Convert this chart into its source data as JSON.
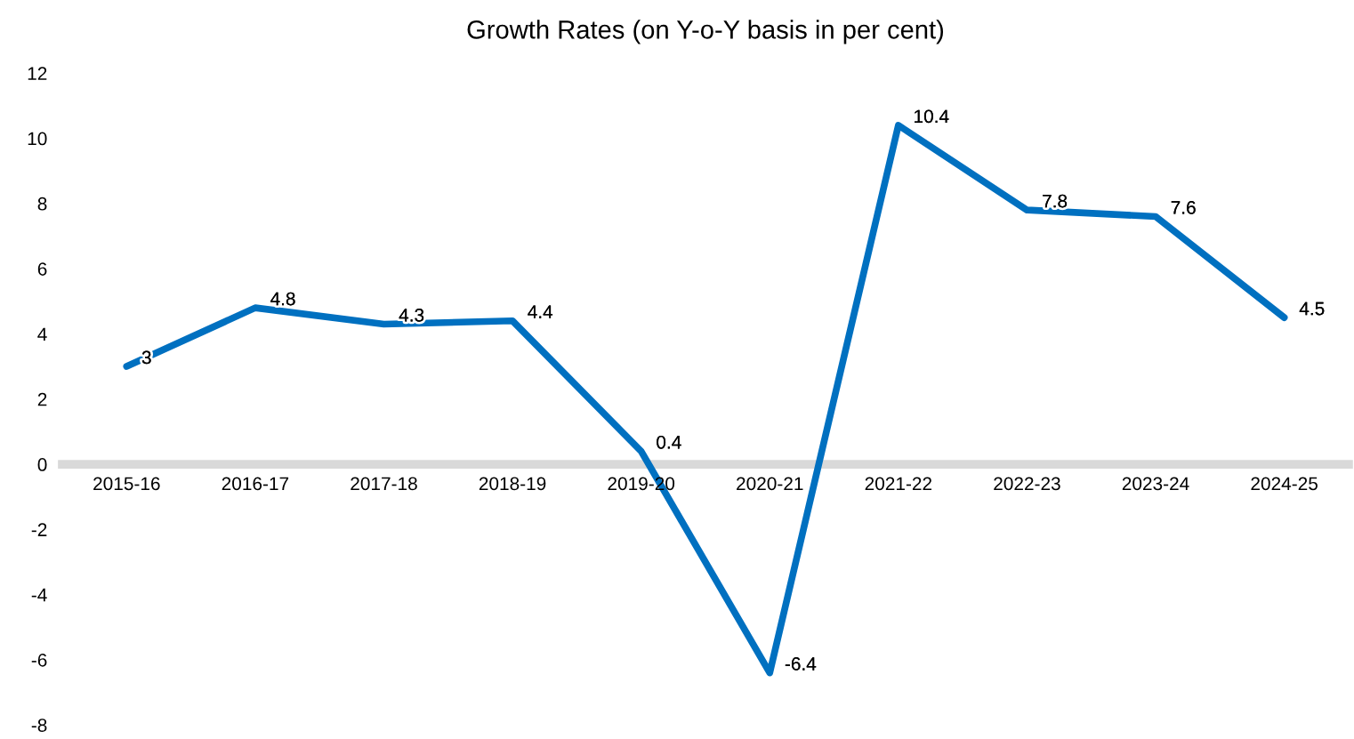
{
  "chart_data": {
    "type": "line",
    "title": "Growth Rates (on Y-o-Y basis in per cent)",
    "categories": [
      "2015-16",
      "2016-17",
      "2017-18",
      "2018-19",
      "2019-20",
      "2020-21",
      "2021-22",
      "2022-23",
      "2023-24",
      "2024-25"
    ],
    "series": [
      {
        "color": "#0070c0",
        "values": [
          3,
          4.8,
          4.3,
          4.4,
          0.4,
          -6.4,
          10.4,
          7.8,
          7.6,
          4.5
        ]
      }
    ],
    "ylim": [
      -8,
      12
    ],
    "yticks": [
      -8,
      -6,
      -4,
      -2,
      0,
      2,
      4,
      6,
      8,
      10,
      12
    ],
    "grid": false,
    "marker": "none",
    "line_style": "solid",
    "data_labels": true
  }
}
